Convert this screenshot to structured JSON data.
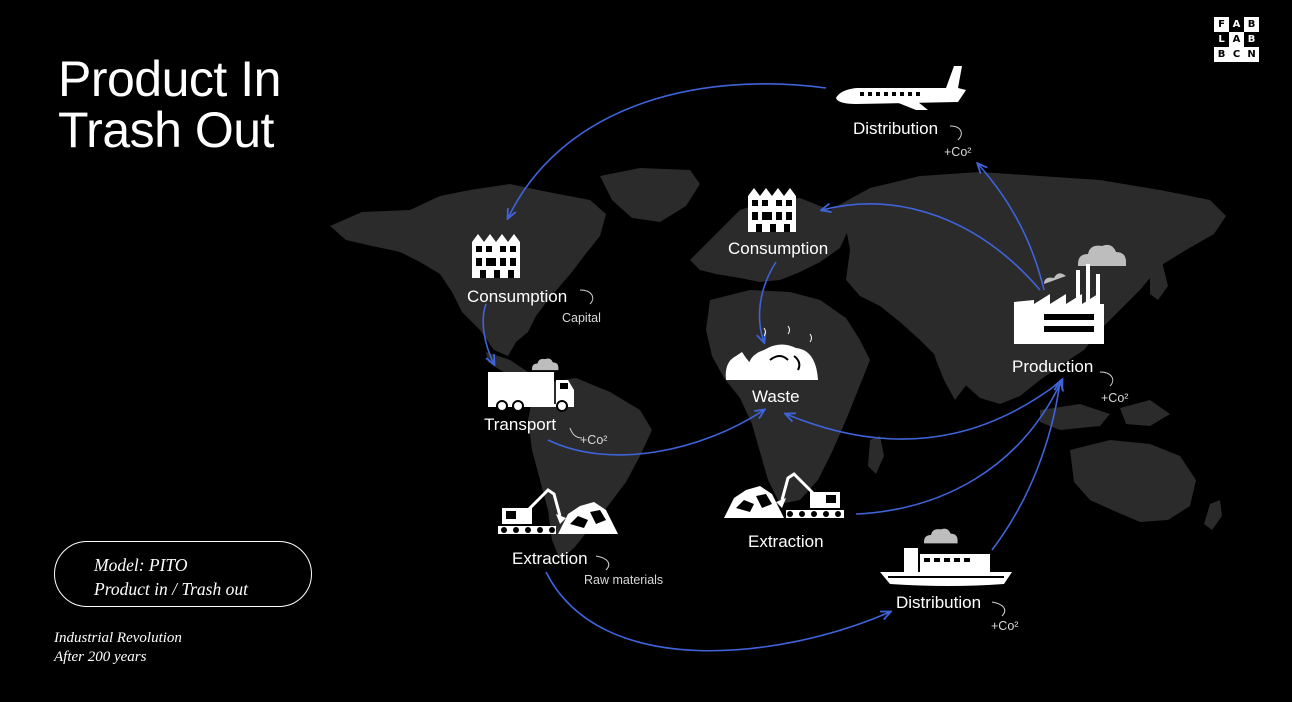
{
  "slide": {
    "title_line1": "Product In",
    "title_line2": "Trash Out"
  },
  "logo": {
    "row1": [
      "F",
      "A",
      "B"
    ],
    "row2": [
      "L",
      "A",
      "B"
    ],
    "row3": [
      "B",
      "C",
      "N"
    ]
  },
  "nodes": {
    "distribution_top": {
      "label": "Distribution",
      "note": "+Co²"
    },
    "consumption_americas": {
      "label": "Consumption",
      "note": "Capital"
    },
    "consumption_europe": {
      "label": "Consumption"
    },
    "production": {
      "label": "Production",
      "note": "+Co²"
    },
    "transport": {
      "label": "Transport",
      "note": "+Co²"
    },
    "waste": {
      "label": "Waste"
    },
    "extraction_americas": {
      "label": "Extraction",
      "note": "Raw materials"
    },
    "extraction_africa": {
      "label": "Extraction"
    },
    "distribution_bottom": {
      "label": "Distribution",
      "note": "+Co²"
    }
  },
  "model_box": {
    "line1": "Model: PITO",
    "line2": "Product in / Trash out"
  },
  "footer": {
    "line1": "Industrial Revolution",
    "line2": "After 200 years"
  },
  "colors": {
    "background": "#000000",
    "continents": "#2b2b2b",
    "arrows": "#3f63d9",
    "text": "#ffffff"
  }
}
